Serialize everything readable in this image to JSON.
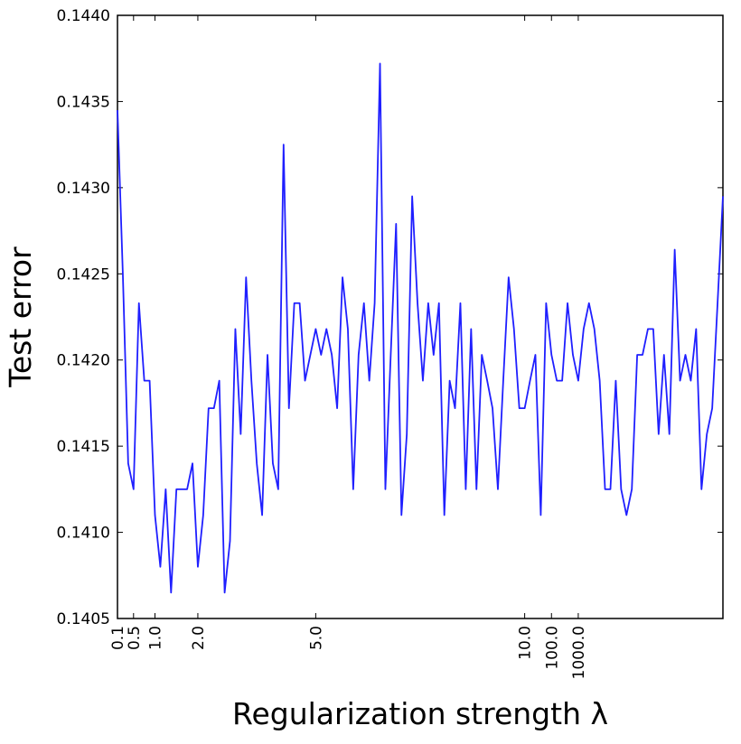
{
  "chart_data": {
    "type": "line",
    "title": "",
    "xlabel": "Regularization strength λ",
    "ylabel": "Test error",
    "ylim": [
      0.1405,
      0.144
    ],
    "y_ticks": [
      0.1405,
      0.141,
      0.1415,
      0.142,
      0.1425,
      0.143,
      0.1435,
      0.144
    ],
    "y_tick_labels": [
      "0.1405",
      "0.1410",
      "0.1415",
      "0.1420",
      "0.1425",
      "0.1430",
      "0.1435",
      "0.1440"
    ],
    "x_tick_labels": [
      "0.1",
      "0.5",
      "1.0",
      "2.0",
      "5.0",
      "10.0",
      "100.0",
      "1000.0"
    ],
    "x_tick_index": [
      0,
      3,
      7,
      15,
      37,
      76,
      81,
      86
    ],
    "grid": false,
    "legend": "none",
    "series": [
      {
        "color": "#1f1fff",
        "values": [
          0.14345,
          0.1425,
          0.1414,
          0.14125,
          0.14233,
          0.14188,
          0.14188,
          0.1411,
          0.1408,
          0.14125,
          0.14065,
          0.14125,
          0.14125,
          0.14125,
          0.1414,
          0.1408,
          0.1411,
          0.14172,
          0.14172,
          0.14188,
          0.14065,
          0.14095,
          0.14218,
          0.14157,
          0.14248,
          0.14188,
          0.1414,
          0.1411,
          0.14203,
          0.1414,
          0.14125,
          0.14325,
          0.14172,
          0.14233,
          0.14233,
          0.14188,
          0.14203,
          0.14218,
          0.14203,
          0.14218,
          0.14203,
          0.14172,
          0.14248,
          0.14218,
          0.14125,
          0.14203,
          0.14233,
          0.14188,
          0.14233,
          0.14372,
          0.14125,
          0.14203,
          0.14279,
          0.1411,
          0.14157,
          0.14295,
          0.14233,
          0.14188,
          0.14233,
          0.14203,
          0.14233,
          0.1411,
          0.14188,
          0.14172,
          0.14233,
          0.14125,
          0.14218,
          0.14125,
          0.14203,
          0.14188,
          0.14172,
          0.14125,
          0.14188,
          0.14248,
          0.14218,
          0.14172,
          0.14172,
          0.14188,
          0.14203,
          0.1411,
          0.14233,
          0.14203,
          0.14188,
          0.14188,
          0.14233,
          0.14203,
          0.14188,
          0.14218,
          0.14233,
          0.14218,
          0.14188,
          0.14125,
          0.14125,
          0.14188,
          0.14125,
          0.1411,
          0.14125,
          0.14203,
          0.14203,
          0.14218,
          0.14218,
          0.14157,
          0.14203,
          0.14157,
          0.14264,
          0.14188,
          0.14203,
          0.14188,
          0.14218,
          0.14125,
          0.14157,
          0.14172,
          0.14233,
          0.14295
        ]
      }
    ]
  }
}
